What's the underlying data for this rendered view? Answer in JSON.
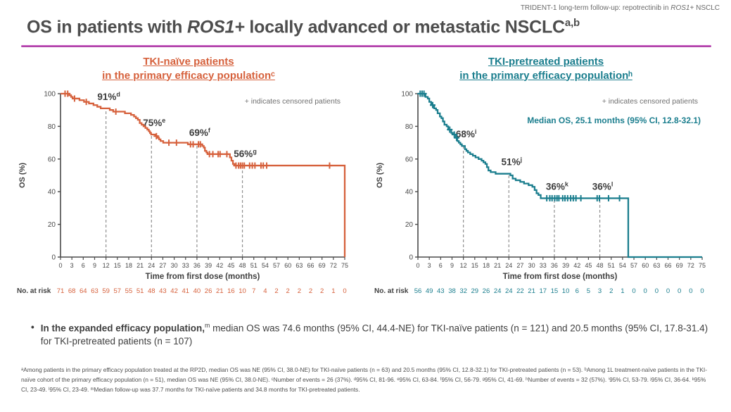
{
  "header": {
    "prefix": "TRIDENT-1 long-term follow-up: repotrectinib in ",
    "italic": "ROS1",
    "suffix": "+ NSCLC"
  },
  "title": {
    "prefix": "OS in patients with ",
    "italic": "ROS1+",
    "rest": " locally advanced or metastatic NSCLC",
    "sup": "a,b"
  },
  "accent_colors": {
    "title_underline": "#a2309b",
    "tki_naive": "#d6613c",
    "tki_pretreated": "#1b7e8e",
    "axis": "#4a4a4a",
    "note_gray": "#6f6f6f"
  },
  "bullet": {
    "marker": "•",
    "bold": "In the expanded efficacy population,",
    "sup": "m",
    "rest": " median OS was 74.6 months (95% CI, 44.4-NE) for TKI-naïve patients (n = 121) and 20.5 months (95% CI, 17.8-31.4) for TKI-pretreated patients (n = 107)"
  },
  "footnotes": "ᵃAmong patients in the primary efficacy population treated at the RP2D, median OS was NE (95% CI, 38.0-NE) for TKI-naïve patients (n = 63) and 20.5 months (95% CI, 12.8-32.1) for TKI-pretreated patients (n = 53). ᵇAmong 1L treatment-naïve patients in the TKI-naïve cohort of the primary efficacy population (n = 51), median OS was NE (95% CI, 38.0-NE). ᶜNumber of events = 26 (37%). ᵈ95% CI, 81-96. ᵉ95% CI, 63-84. ᶠ95% CI, 56-79. ᵍ95% CI, 41-69. ʰNumber of events = 32 (57%). ⁱ95% CI, 53-79. ʲ95% CI, 36-64. ᵏ95% CI, 23-49. ˡ95% CI, 23-49. ᵐMedian follow-up was 37.7 months for TKI-naïve patients and 34.8 months for TKI-pretreated patients.",
  "chart_data": [
    {
      "type": "line",
      "subtype": "kaplan-meier",
      "title_lines": [
        "TKI-naïve patients",
        "in the primary efficacy populationᶜ"
      ],
      "color": "#d6613c",
      "censored_note": "+ indicates censored patients",
      "annotation": "",
      "xlabel": "Time from first dose (months)",
      "ylabel": "OS (%)",
      "xlim": [
        0,
        75
      ],
      "xtick_step": 3,
      "ylim": [
        0,
        100
      ],
      "ytick_step": 20,
      "landmarks": [
        {
          "x": 12,
          "value": 91,
          "label": "91%",
          "sup": "d"
        },
        {
          "x": 24,
          "value": 75,
          "label": "75%",
          "sup": "e"
        },
        {
          "x": 36,
          "value": 69,
          "label": "69%",
          "sup": "f"
        },
        {
          "x": 48,
          "value": 56,
          "label": "56%",
          "sup": "g"
        }
      ],
      "steps": [
        [
          0,
          100
        ],
        [
          2.3,
          99
        ],
        [
          2.8,
          98
        ],
        [
          3.2,
          97
        ],
        [
          5,
          96
        ],
        [
          6.2,
          95
        ],
        [
          7.5,
          94
        ],
        [
          8.7,
          93
        ],
        [
          9.7,
          92
        ],
        [
          10.6,
          91
        ],
        [
          13,
          90
        ],
        [
          13.9,
          89
        ],
        [
          17,
          88
        ],
        [
          18.6,
          87
        ],
        [
          19.4,
          86
        ],
        [
          19.9,
          85
        ],
        [
          20.4,
          84
        ],
        [
          20.9,
          82
        ],
        [
          21.4,
          81
        ],
        [
          21.9,
          80
        ],
        [
          22.4,
          79
        ],
        [
          22.9,
          78
        ],
        [
          23.3,
          77
        ],
        [
          23.6,
          76
        ],
        [
          23.9,
          75
        ],
        [
          25.1,
          74
        ],
        [
          25.6,
          73
        ],
        [
          26,
          72
        ],
        [
          26.4,
          71
        ],
        [
          27.1,
          70
        ],
        [
          33.6,
          69
        ],
        [
          37.4,
          68
        ],
        [
          37.8,
          67
        ],
        [
          38.1,
          65
        ],
        [
          38.5,
          64
        ],
        [
          38.8,
          63
        ],
        [
          44.7,
          61
        ],
        [
          45.1,
          59
        ],
        [
          45.5,
          57
        ],
        [
          45.9,
          56
        ],
        [
          75,
          56
        ],
        [
          75,
          0
        ]
      ],
      "censors": [
        [
          1.2,
          100
        ],
        [
          1.9,
          100
        ],
        [
          3.7,
          97
        ],
        [
          6.8,
          95
        ],
        [
          14.6,
          89
        ],
        [
          25.3,
          74
        ],
        [
          28.6,
          70
        ],
        [
          30.6,
          70
        ],
        [
          34.3,
          69
        ],
        [
          35,
          69
        ],
        [
          36.4,
          69
        ],
        [
          36.9,
          69
        ],
        [
          39.3,
          63
        ],
        [
          40.2,
          63
        ],
        [
          41.6,
          63
        ],
        [
          42.1,
          63
        ],
        [
          43.9,
          63
        ],
        [
          46.3,
          56
        ],
        [
          47,
          56
        ],
        [
          47.5,
          56
        ],
        [
          48,
          56
        ],
        [
          48.5,
          56
        ],
        [
          49.9,
          56
        ],
        [
          50.6,
          56
        ],
        [
          51.3,
          56
        ],
        [
          52.9,
          56
        ],
        [
          53.5,
          56
        ],
        [
          54.4,
          56
        ],
        [
          71,
          56
        ]
      ],
      "at_risk_label": "No. at risk",
      "at_risk": [
        71,
        68,
        64,
        63,
        59,
        57,
        55,
        51,
        48,
        43,
        42,
        41,
        40,
        26,
        21,
        16,
        10,
        7,
        4,
        2,
        2,
        2,
        2,
        2,
        1,
        0
      ]
    },
    {
      "type": "line",
      "subtype": "kaplan-meier",
      "title_lines": [
        "TKI-pretreated patients",
        "in the primary efficacy populationʰ"
      ],
      "color": "#1b7e8e",
      "censored_note": "+ indicates censored patients",
      "annotation": "Median OS, 25.1 months (95% CI, 12.8-32.1)",
      "xlabel": "Time from first dose (months)",
      "ylabel": "OS (%)",
      "xlim": [
        0,
        75
      ],
      "xtick_step": 3,
      "ylim": [
        0,
        100
      ],
      "ytick_step": 20,
      "landmarks": [
        {
          "x": 12,
          "value": 68,
          "label": "68%",
          "sup": "i"
        },
        {
          "x": 24,
          "value": 51,
          "label": "51%",
          "sup": "j"
        },
        {
          "x": 36,
          "value": 36,
          "label": "36%",
          "sup": "k"
        },
        {
          "x": 48,
          "value": 36,
          "label": "36%",
          "sup": "l"
        }
      ],
      "steps": [
        [
          0,
          100
        ],
        [
          2,
          98
        ],
        [
          2.6,
          97
        ],
        [
          3,
          95
        ],
        [
          3.5,
          93
        ],
        [
          4.3,
          91
        ],
        [
          4.8,
          90
        ],
        [
          5.2,
          88
        ],
        [
          5.8,
          86
        ],
        [
          6.2,
          85
        ],
        [
          6.6,
          83
        ],
        [
          7,
          81
        ],
        [
          7.6,
          80
        ],
        [
          8,
          78
        ],
        [
          8.8,
          76
        ],
        [
          9.2,
          75
        ],
        [
          10,
          73
        ],
        [
          10.4,
          71
        ],
        [
          10.8,
          70
        ],
        [
          11.2,
          69
        ],
        [
          11.6,
          68
        ],
        [
          12.4,
          66
        ],
        [
          12.8,
          65
        ],
        [
          13.2,
          64
        ],
        [
          13.8,
          63
        ],
        [
          14.5,
          62
        ],
        [
          15.2,
          61
        ],
        [
          16,
          60
        ],
        [
          16.8,
          59
        ],
        [
          17.3,
          58
        ],
        [
          17.8,
          57
        ],
        [
          18.2,
          55
        ],
        [
          18.6,
          53
        ],
        [
          19.2,
          52
        ],
        [
          20.5,
          51
        ],
        [
          24.4,
          50
        ],
        [
          25,
          48
        ],
        [
          25.8,
          47
        ],
        [
          27,
          46
        ],
        [
          28,
          45
        ],
        [
          29.2,
          44
        ],
        [
          30.2,
          43
        ],
        [
          30.8,
          41
        ],
        [
          31.3,
          39
        ],
        [
          31.8,
          38
        ],
        [
          32.4,
          36
        ],
        [
          55.5,
          36
        ],
        [
          55.5,
          0
        ],
        [
          75,
          0
        ]
      ],
      "censors": [
        [
          0.6,
          100
        ],
        [
          1.1,
          100
        ],
        [
          1.6,
          100
        ],
        [
          3.9,
          93
        ],
        [
          8.4,
          78
        ],
        [
          9.6,
          75
        ],
        [
          10.2,
          73
        ],
        [
          34,
          36
        ],
        [
          34.8,
          36
        ],
        [
          35.4,
          36
        ],
        [
          36.1,
          36
        ],
        [
          36.7,
          36
        ],
        [
          37.2,
          36
        ],
        [
          38.2,
          36
        ],
        [
          38.8,
          36
        ],
        [
          39.5,
          36
        ],
        [
          40.3,
          36
        ],
        [
          41,
          36
        ],
        [
          41.7,
          36
        ],
        [
          43,
          36
        ],
        [
          47.3,
          36
        ],
        [
          47.9,
          36
        ],
        [
          50.3,
          36
        ],
        [
          53.2,
          36
        ]
      ],
      "at_risk_label": "No. at risk",
      "at_risk": [
        56,
        49,
        43,
        38,
        32,
        29,
        26,
        24,
        24,
        22,
        21,
        17,
        15,
        10,
        6,
        5,
        3,
        2,
        1,
        0,
        0,
        0,
        0,
        0,
        0,
        0
      ]
    }
  ]
}
